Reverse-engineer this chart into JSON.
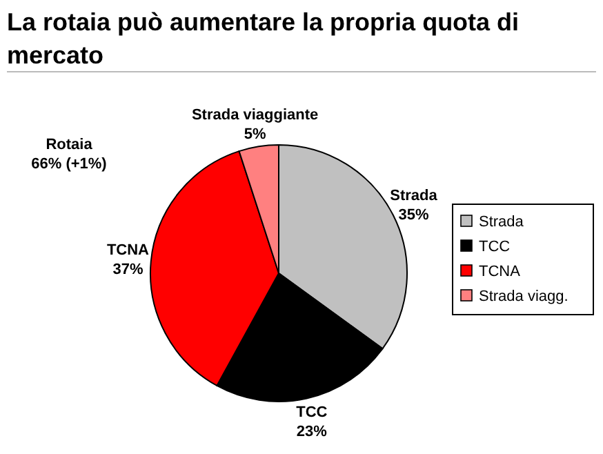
{
  "chart_data": {
    "type": "pie",
    "title": "La rotaia può aumentare la propria quota di mercato",
    "categories": [
      "Strada",
      "TCC",
      "TCNA",
      "Strada viagg."
    ],
    "values": [
      35,
      23,
      37,
      5
    ],
    "colors": [
      "#c0c0c0",
      "#000000",
      "#ff0000",
      "#ff8080"
    ],
    "value_labels": [
      "35%",
      "23%",
      "37%",
      "5%"
    ],
    "legend": "right",
    "annotations": [
      {
        "text": "Strada",
        "x": "Strada"
      },
      {
        "text": "TCC",
        "x": "TCC"
      },
      {
        "text": "TCNA",
        "x": "TCNA"
      },
      {
        "text": "Strada viaggiante",
        "x": "Strada viagg."
      },
      "Rotaia 66% (+1%)"
    ]
  }
}
